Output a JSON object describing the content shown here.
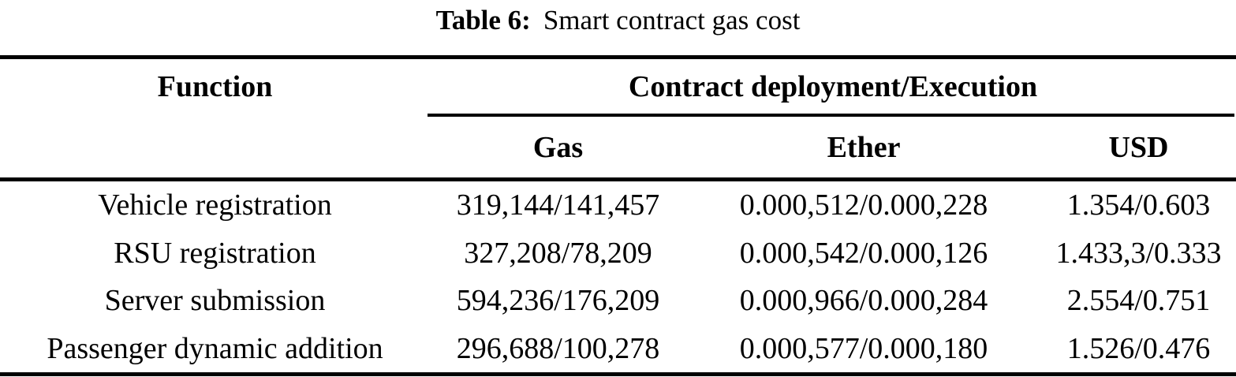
{
  "caption": {
    "label": "Table 6:",
    "text": "Smart contract gas cost"
  },
  "table": {
    "col1_header": "Function",
    "group_header": "Contract deployment/Execution",
    "sub_headers": [
      "Gas",
      "Ether",
      "USD"
    ],
    "rows": [
      {
        "function": "Vehicle registration",
        "gas": "319,144/141,457",
        "ether": "0.000,512/0.000,228",
        "usd": "1.354/0.603"
      },
      {
        "function": "RSU registration",
        "gas": "327,208/78,209",
        "ether": "0.000,542/0.000,126",
        "usd": "1.433,3/0.333"
      },
      {
        "function": "Server submission",
        "gas": "594,236/176,209",
        "ether": "0.000,966/0.000,284",
        "usd": "2.554/0.751"
      },
      {
        "function": "Passenger dynamic addition",
        "gas": "296,688/100,278",
        "ether": "0.000,577/0.000,180",
        "usd": "1.526/0.476"
      }
    ]
  },
  "colors": {
    "text": "#000000",
    "background": "#ffffff",
    "rule": "#000000"
  }
}
